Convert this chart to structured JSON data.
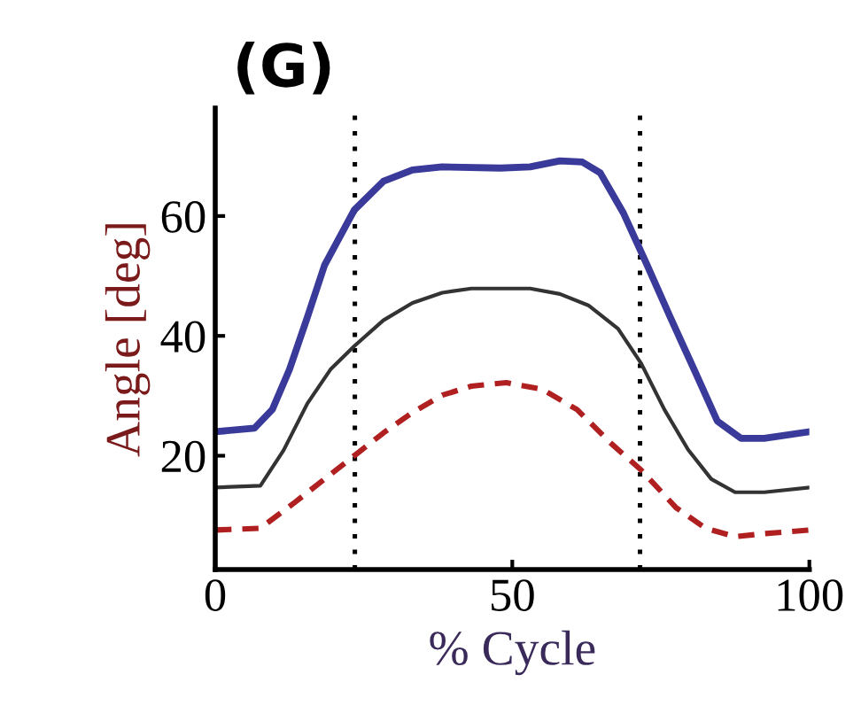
{
  "chart_data": {
    "type": "line",
    "title": "(G)",
    "xlabel": "% Cycle",
    "ylabel": "Angle [deg]",
    "xlim": [
      0,
      100
    ],
    "ylim": [
      1,
      78
    ],
    "xticks": [
      0,
      50,
      100
    ],
    "yticks": [
      20,
      40,
      60
    ],
    "grid": false,
    "legend": false,
    "marker": "none",
    "ref_lines": [
      {
        "axis": "x",
        "value": 23.5,
        "color": "#000000",
        "line_style": "dotted"
      },
      {
        "axis": "x",
        "value": 71.5,
        "color": "#000000",
        "line_style": "dotted"
      }
    ],
    "series": [
      {
        "color": "#3a3a9a",
        "line_style": "solid",
        "x": [
          0,
          6.6,
          9.6,
          12.5,
          15.5,
          18.4,
          23.4,
          28.3,
          33.2,
          38.2,
          48,
          53,
          58,
          61.8,
          64.8,
          68.7,
          72.7,
          76.6,
          80.6,
          84.5,
          88.5,
          92.4,
          100
        ],
        "values": [
          24,
          24.6,
          27.7,
          34.4,
          43.1,
          51.8,
          61,
          65.8,
          67.7,
          68.2,
          68,
          68.2,
          69.2,
          69,
          67.2,
          60.5,
          51.8,
          43.1,
          34.4,
          25.8,
          22.9,
          22.9,
          24
        ]
      },
      {
        "color": "#333333",
        "line_style": "solid",
        "x": [
          0,
          7.6,
          11.5,
          15.5,
          19.4,
          23.4,
          28.3,
          33.2,
          38.2,
          43.1,
          53,
          58,
          62.8,
          67.8,
          71.7,
          75.6,
          79.6,
          83.5,
          87.5,
          92.4,
          100
        ],
        "values": [
          14.7,
          15,
          20.9,
          28.7,
          34.4,
          38.3,
          42.6,
          45.5,
          47.2,
          47.9,
          47.9,
          47,
          45.1,
          41.2,
          35.4,
          27.7,
          21,
          16.1,
          13.9,
          13.9,
          14.7
        ]
      },
      {
        "color": "#b02020",
        "line_style": "dashed",
        "x": [
          0,
          7.6,
          13.5,
          18.4,
          23.4,
          28.3,
          33.2,
          38.2,
          43.1,
          49,
          55,
          60.9,
          66.8,
          71.7,
          77.6,
          82.5,
          87.5,
          92.4,
          100
        ],
        "values": [
          7.6,
          7.9,
          12.3,
          16.1,
          20,
          23.8,
          27.2,
          30.1,
          31.6,
          32.2,
          31.1,
          27.7,
          21.9,
          17.6,
          11.3,
          7.9,
          6.5,
          7,
          7.6
        ]
      }
    ]
  }
}
